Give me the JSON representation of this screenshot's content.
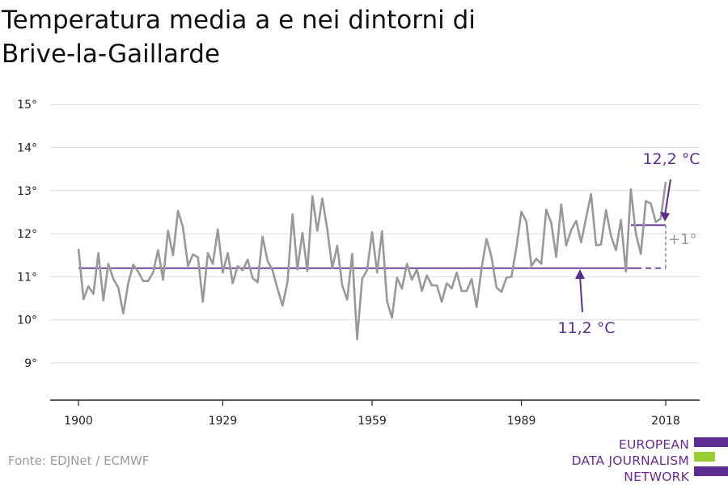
{
  "title_line1": "Temperatura media a e nei dintorni di",
  "title_line2": "Brive-la-Gaillarde",
  "source": "Fonte: EDJNet / ECMWF",
  "logo": {
    "line1": "EUROPEAN",
    "line2": "DATA JOURNALISM",
    "line3": "NETWORK"
  },
  "colors": {
    "series": "#999999",
    "accent": "#5e2d91",
    "diff": "#9a9a9a",
    "logo_green": "#9acd32"
  },
  "chart_data": {
    "type": "line",
    "title": "Temperatura media a e nei dintorni di Brive-la-Gaillarde",
    "x_ticks": [
      1900,
      1929,
      1959,
      1989,
      2018
    ],
    "y_ticks": [
      9,
      10,
      11,
      12,
      13,
      14,
      15
    ],
    "y_tick_labels": [
      "9°",
      "10°",
      "11°",
      "12°",
      "13°",
      "14°",
      "15°"
    ],
    "xlim": [
      1900,
      2018
    ],
    "ylim": [
      8.1,
      15.3
    ],
    "grid": true,
    "series": [
      {
        "x": [
          1900,
          1901,
          1902,
          1903,
          1904,
          1905,
          1906,
          1907,
          1908,
          1909,
          1910,
          1911,
          1912,
          1913,
          1914,
          1915,
          1916,
          1917,
          1918,
          1919,
          1920,
          1921,
          1922,
          1923,
          1924,
          1925,
          1926,
          1927,
          1928,
          1929,
          1930,
          1931,
          1932,
          1933,
          1934,
          1935,
          1936,
          1937,
          1938,
          1939,
          1940,
          1941,
          1942,
          1943,
          1944,
          1945,
          1946,
          1947,
          1948,
          1949,
          1950,
          1951,
          1952,
          1953,
          1954,
          1955,
          1956,
          1957,
          1958,
          1959,
          1960,
          1961,
          1962,
          1963,
          1964,
          1965,
          1966,
          1967,
          1968,
          1969,
          1970,
          1971,
          1972,
          1973,
          1974,
          1975,
          1976,
          1977,
          1978,
          1979,
          1980,
          1981,
          1982,
          1983,
          1984,
          1985,
          1986,
          1987,
          1988,
          1989,
          1990,
          1991,
          1992,
          1993,
          1994,
          1995,
          1996,
          1997,
          1998,
          1999,
          2000,
          2001,
          2002,
          2003,
          2004,
          2005,
          2006,
          2007,
          2008,
          2009,
          2010,
          2011,
          2012,
          2013,
          2014,
          2015,
          2016,
          2017,
          2018
        ],
        "y": [
          11.65,
          10.48,
          10.78,
          10.6,
          11.55,
          10.45,
          11.3,
          10.95,
          10.75,
          10.15,
          10.85,
          11.28,
          11.12,
          10.9,
          10.9,
          11.1,
          11.62,
          10.93,
          12.07,
          11.5,
          12.53,
          12.15,
          11.25,
          11.52,
          11.45,
          10.42,
          11.55,
          11.3,
          12.1,
          11.1,
          11.55,
          10.85,
          11.25,
          11.15,
          11.4,
          10.97,
          10.87,
          11.93,
          11.37,
          11.15,
          10.72,
          10.33,
          10.88,
          12.45,
          11.17,
          12.02,
          11.13,
          12.87,
          12.07,
          12.82,
          12.1,
          11.2,
          11.72,
          10.8,
          10.47,
          11.53,
          9.55,
          10.95,
          11.15,
          12.04,
          11.1,
          12.06,
          10.43,
          10.05,
          10.98,
          10.72,
          11.3,
          10.93,
          11.17,
          10.67,
          11.03,
          10.8,
          10.8,
          10.42,
          10.85,
          10.73,
          11.1,
          10.67,
          10.67,
          10.95,
          10.3,
          11.2,
          11.88,
          11.45,
          10.75,
          10.65,
          10.98,
          11.0,
          11.68,
          12.51,
          12.28,
          11.25,
          11.42,
          11.3,
          12.56,
          12.25,
          11.46,
          12.68,
          11.73,
          12.08,
          12.3,
          11.8,
          12.37,
          12.92,
          11.73,
          11.75,
          12.55,
          11.95,
          11.62,
          12.32,
          11.12,
          13.03,
          12.0,
          11.53,
          12.76,
          12.7,
          12.27,
          12.35,
          13.2
        ]
      }
    ],
    "baseline": {
      "value": 11.2,
      "label": "11,2 °C",
      "solid_until": 2012,
      "dashed_until": 2018
    },
    "recent": {
      "value": 12.2,
      "label": "12,2 °C",
      "from": 2011,
      "to": 2018
    },
    "difference_label": "+1°"
  }
}
